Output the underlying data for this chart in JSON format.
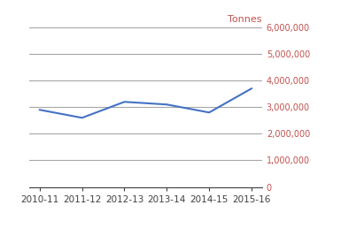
{
  "categories": [
    "2010-11",
    "2011-12",
    "2012-13",
    "2013-14",
    "2014-15",
    "2015-16"
  ],
  "values": [
    2900000,
    2600000,
    3200000,
    3100000,
    2800000,
    3700000
  ],
  "line_color": "#4472C4",
  "tonnes_label": "Tonnes",
  "label_color": "#C0504D",
  "tick_color": "#C0504D",
  "xtick_color": "#4472C4",
  "ylim": [
    0,
    6000000
  ],
  "yticks": [
    0,
    1000000,
    2000000,
    3000000,
    4000000,
    5000000,
    6000000
  ],
  "grid_color": "#A6A6A6",
  "background_color": "#FFFFFF",
  "line_width": 1.5
}
